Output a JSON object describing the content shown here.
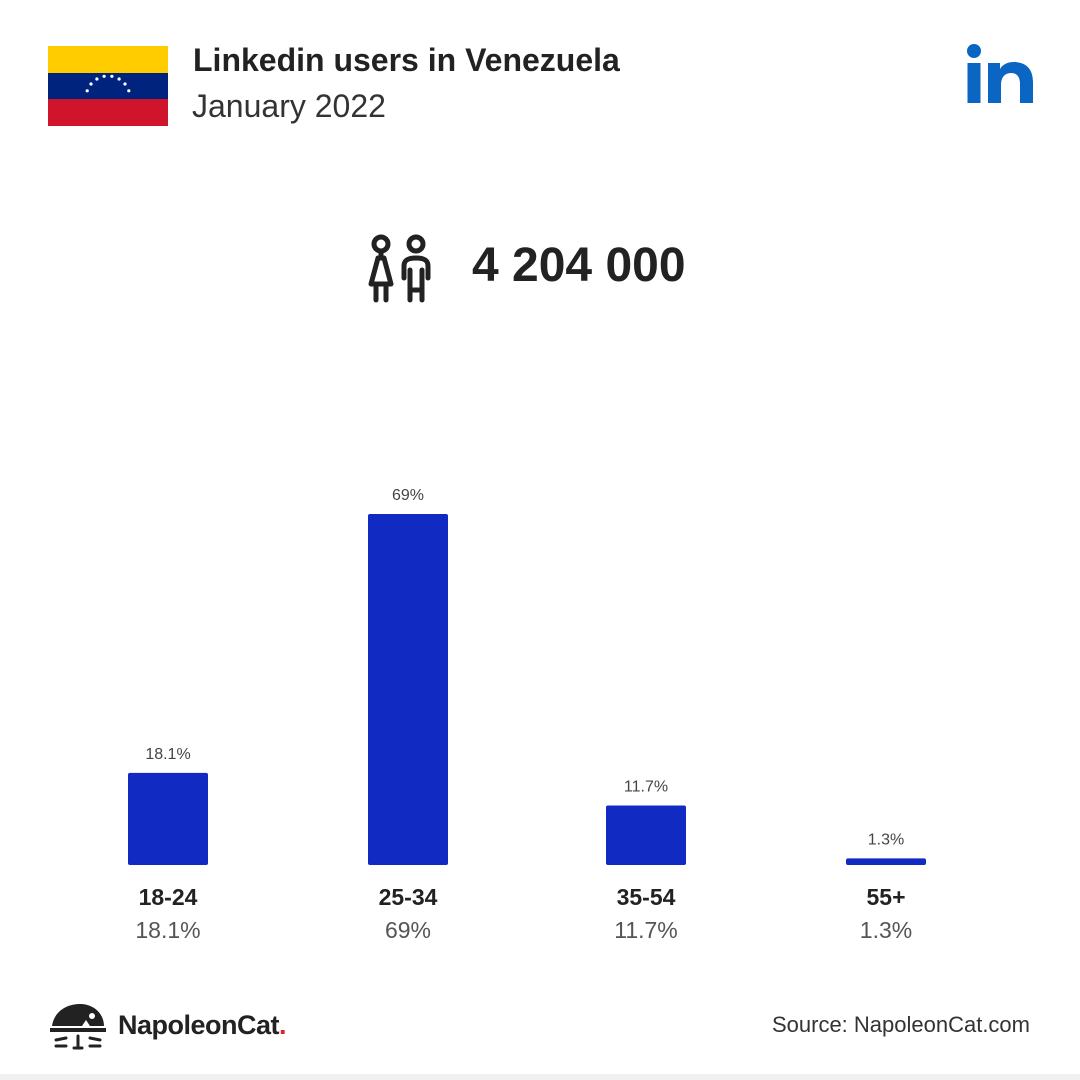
{
  "header": {
    "title": "Linkedin users in Venezuela",
    "subtitle": "January 2022",
    "flag_colors": [
      "#ffcc00",
      "#00247d",
      "#cf142b"
    ],
    "logo_icon": "linkedin-icon",
    "logo_color": "#0a66c2"
  },
  "summary": {
    "icon": "people-icon",
    "total": "4 204 000"
  },
  "chart_data": {
    "type": "bar",
    "categories": [
      "18-24",
      "25-34",
      "35-54",
      "55+"
    ],
    "values": [
      18.1,
      69,
      11.7,
      1.3
    ],
    "value_labels": [
      "18.1%",
      "69%",
      "11.7%",
      "1.3%"
    ],
    "ylim": [
      0,
      69
    ],
    "bar_color": "#102ac2"
  },
  "footer": {
    "brand_name": "NapoleonCat",
    "brand_dot": ".",
    "source": "Source: NapoleonCat.com"
  }
}
